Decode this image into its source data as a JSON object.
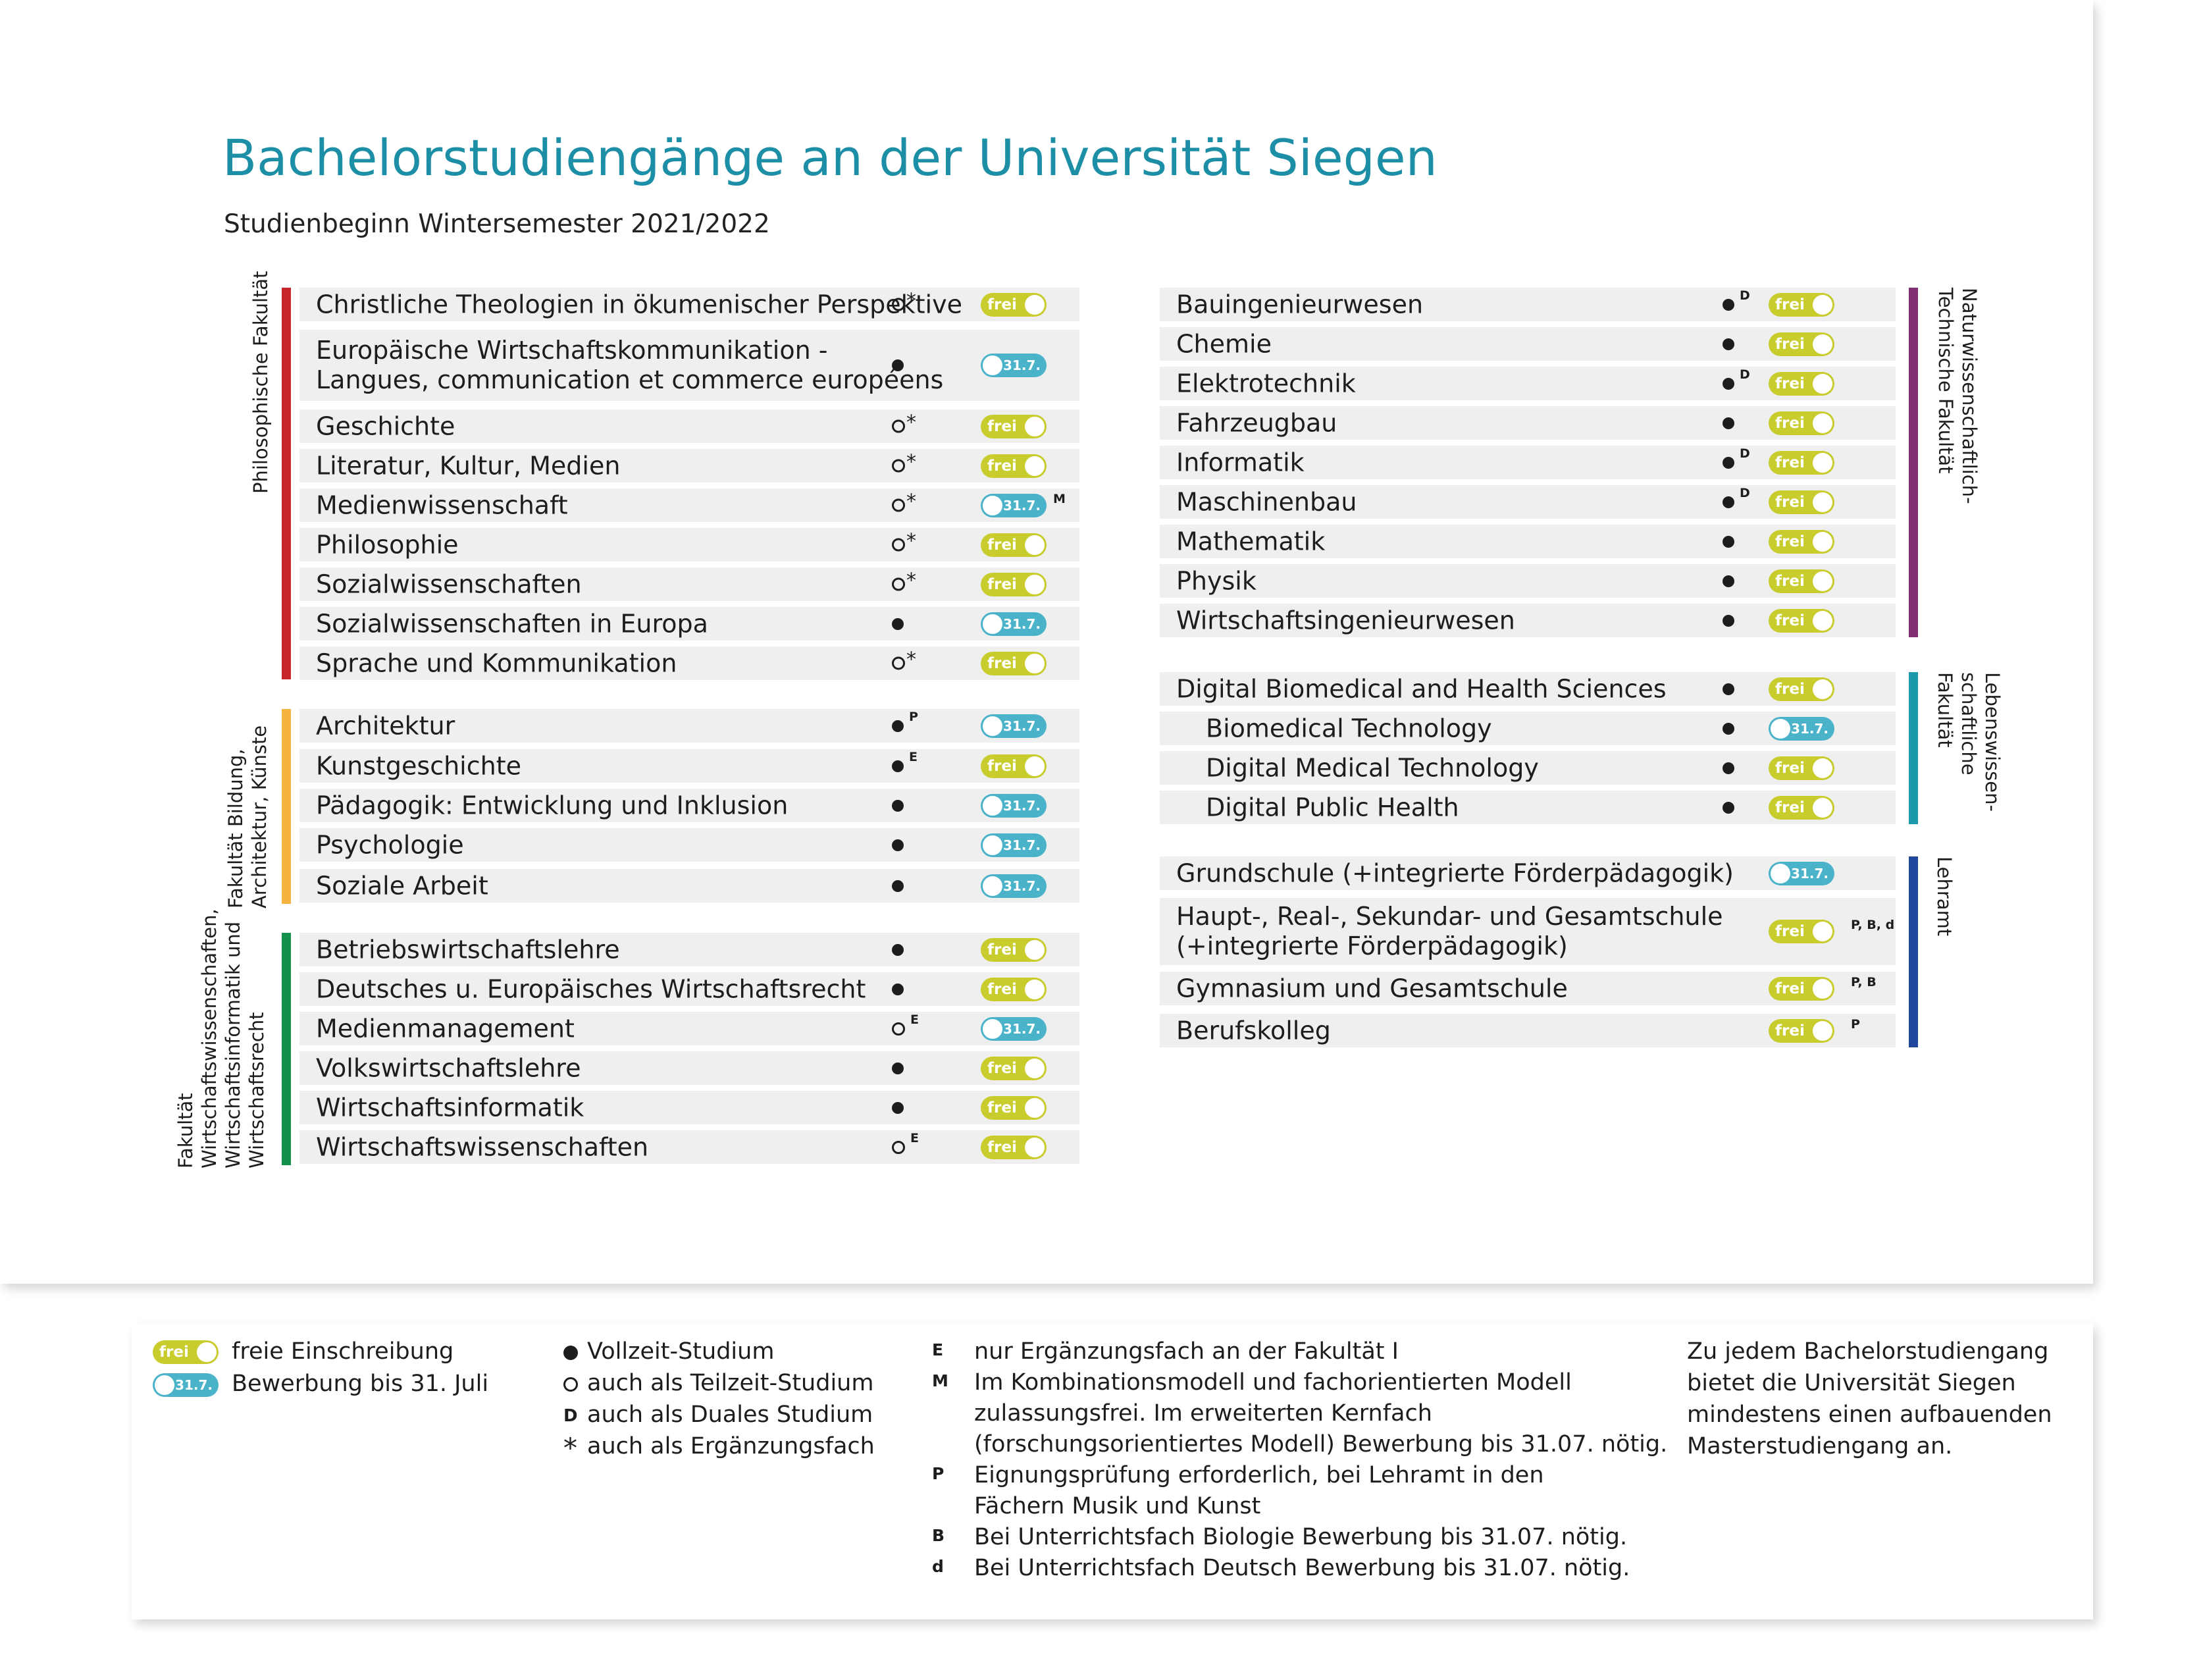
{
  "title_prefix": "Bachelorstudiengänge an der ",
  "title_uni": "Universität Siegen",
  "subtitle": "Studienbeginn Wintersemester 2021/2022",
  "colors": {
    "title": "#1c8fa6",
    "frei": "#c8cc2d",
    "date": "#4ab2c9",
    "phil": "#c6252b",
    "bild": "#f4b43f",
    "wiwi": "#13914a",
    "nat": "#7f2f72",
    "leb": "#1a9aaa",
    "lehr": "#20479b"
  },
  "faculties": [
    {
      "id": "phil",
      "label": "Philosophische Fakultät",
      "lines": [
        "Philosophische Fakultät"
      ]
    },
    {
      "id": "bild",
      "label": "Fakultät Bildung, Architektur, Künste",
      "lines": [
        "Fakultät Bildung,",
        "Architektur, Künste"
      ]
    },
    {
      "id": "wiwi",
      "label": "Fakultät Wirtschaftswissenschaften, Wirtschaftsinformatik und Wirtschaftsrecht",
      "lines": [
        "Fakultät",
        "Wirtschaftswissenschaften,",
        "Wirtschaftsinformatik und",
        "Wirtschaftsrecht"
      ]
    },
    {
      "id": "nat",
      "label": "Naturwissenschaftlich-Technische Fakultät",
      "lines": [
        "Naturwissenschaftlich-",
        "Technische Fakultät"
      ]
    },
    {
      "id": "leb",
      "label": "Lebenswissenschaftliche Fakultät",
      "lines": [
        "Lebenswissen-",
        "schaftliche",
        "Fakultät"
      ]
    },
    {
      "id": "lehr",
      "label": "Lehramt",
      "lines": [
        "Lehramt"
      ]
    }
  ],
  "programs": [
    {
      "name": "Christliche Theologien in ökumenischer Perspektive",
      "faculty": "phil",
      "mode": "ring",
      "sup": "*",
      "status": "frei",
      "suffix": ""
    },
    {
      "name": "Europäische Wirtschaftskommunikation -",
      "name2": "Langues, communication et commerce européens",
      "faculty": "phil",
      "mode": "dot",
      "sup": "",
      "status": "31.7.",
      "suffix": ""
    },
    {
      "name": "Geschichte",
      "faculty": "phil",
      "mode": "ring",
      "sup": "*",
      "status": "frei",
      "suffix": ""
    },
    {
      "name": "Literatur, Kultur, Medien",
      "faculty": "phil",
      "mode": "ring",
      "sup": "*",
      "status": "frei",
      "suffix": ""
    },
    {
      "name": "Medienwissenschaft",
      "faculty": "phil",
      "mode": "ring",
      "sup": "*",
      "status": "31.7.",
      "suffix": "M"
    },
    {
      "name": "Philosophie",
      "faculty": "phil",
      "mode": "ring",
      "sup": "*",
      "status": "frei",
      "suffix": ""
    },
    {
      "name": "Sozialwissenschaften",
      "faculty": "phil",
      "mode": "ring",
      "sup": "*",
      "status": "frei",
      "suffix": ""
    },
    {
      "name": "Sozialwissenschaften in Europa",
      "faculty": "phil",
      "mode": "dot",
      "sup": "",
      "status": "31.7.",
      "suffix": ""
    },
    {
      "name": "Sprache und Kommunikation",
      "faculty": "phil",
      "mode": "ring",
      "sup": "*",
      "status": "frei",
      "suffix": ""
    },
    {
      "name": "Architektur",
      "faculty": "bild",
      "mode": "dot",
      "sup": "P",
      "status": "31.7.",
      "suffix": ""
    },
    {
      "name": "Kunstgeschichte",
      "faculty": "bild",
      "mode": "dot",
      "sup": "E",
      "status": "frei",
      "suffix": ""
    },
    {
      "name": "Pädagogik: Entwicklung und Inklusion",
      "faculty": "bild",
      "mode": "dot",
      "sup": "",
      "status": "31.7.",
      "suffix": ""
    },
    {
      "name": "Psychologie",
      "faculty": "bild",
      "mode": "dot",
      "sup": "",
      "status": "31.7.",
      "suffix": ""
    },
    {
      "name": "Soziale Arbeit",
      "faculty": "bild",
      "mode": "dot",
      "sup": "",
      "status": "31.7.",
      "suffix": ""
    },
    {
      "name": "Betriebswirtschaftslehre",
      "faculty": "wiwi",
      "mode": "dot",
      "sup": "",
      "status": "frei",
      "suffix": ""
    },
    {
      "name": "Deutsches u. Europäisches Wirtschaftsrecht",
      "faculty": "wiwi",
      "mode": "dot",
      "sup": "",
      "status": "frei",
      "suffix": ""
    },
    {
      "name": "Medienmanagement",
      "faculty": "wiwi",
      "mode": "ring",
      "sup": "E",
      "status": "31.7.",
      "suffix": ""
    },
    {
      "name": "Volkswirtschaftslehre",
      "faculty": "wiwi",
      "mode": "dot",
      "sup": "",
      "status": "frei",
      "suffix": ""
    },
    {
      "name": "Wirtschaftsinformatik",
      "faculty": "wiwi",
      "mode": "dot",
      "sup": "",
      "status": "frei",
      "suffix": ""
    },
    {
      "name": "Wirtschaftswissenschaften",
      "faculty": "wiwi",
      "mode": "ring",
      "sup": "E",
      "status": "frei",
      "suffix": ""
    },
    {
      "name": "Bauingenieurwesen",
      "faculty": "nat",
      "mode": "dot",
      "sup": "D",
      "status": "frei",
      "suffix": ""
    },
    {
      "name": "Chemie",
      "faculty": "nat",
      "mode": "dot",
      "sup": "",
      "status": "frei",
      "suffix": ""
    },
    {
      "name": "Elektrotechnik",
      "faculty": "nat",
      "mode": "dot",
      "sup": "D",
      "status": "frei",
      "suffix": ""
    },
    {
      "name": "Fahrzeugbau",
      "faculty": "nat",
      "mode": "dot",
      "sup": "",
      "status": "frei",
      "suffix": ""
    },
    {
      "name": "Informatik",
      "faculty": "nat",
      "mode": "dot",
      "sup": "D",
      "status": "frei",
      "suffix": ""
    },
    {
      "name": "Maschinenbau",
      "faculty": "nat",
      "mode": "dot",
      "sup": "D",
      "status": "frei",
      "suffix": ""
    },
    {
      "name": "Mathematik",
      "faculty": "nat",
      "mode": "dot",
      "sup": "",
      "status": "frei",
      "suffix": ""
    },
    {
      "name": "Physik",
      "faculty": "nat",
      "mode": "dot",
      "sup": "",
      "status": "frei",
      "suffix": ""
    },
    {
      "name": "Wirtschaftsingenieurwesen",
      "faculty": "nat",
      "mode": "dot",
      "sup": "",
      "status": "frei",
      "suffix": ""
    },
    {
      "name": "Digital Biomedical and Health Sciences",
      "faculty": "leb",
      "mode": "dot",
      "sup": "",
      "status": "frei",
      "suffix": ""
    },
    {
      "name": "Biomedical Technology",
      "faculty": "leb",
      "mode": "dot",
      "sup": "",
      "status": "31.7.",
      "suffix": "",
      "indent": true
    },
    {
      "name": "Digital Medical Technology",
      "faculty": "leb",
      "mode": "dot",
      "sup": "",
      "status": "frei",
      "suffix": "",
      "indent": true
    },
    {
      "name": "Digital Public Health",
      "faculty": "leb",
      "mode": "dot",
      "sup": "",
      "status": "frei",
      "suffix": "",
      "indent": true
    },
    {
      "name": "Grundschule (+integrierte Förderpädagogik)",
      "faculty": "lehr",
      "mode": "none",
      "sup": "",
      "status": "31.7.",
      "suffix": ""
    },
    {
      "name": "Haupt-, Real-, Sekundar- und Gesamtschule",
      "name2": "(+integrierte Förderpädagogik)",
      "faculty": "lehr",
      "mode": "none",
      "sup": "",
      "status": "frei",
      "suffix": "P, B, d"
    },
    {
      "name": "Gymnasium und Gesamtschule",
      "faculty": "lehr",
      "mode": "none",
      "sup": "",
      "status": "frei",
      "suffix": "P, B"
    },
    {
      "name": "Berufskolleg",
      "faculty": "lehr",
      "mode": "none",
      "sup": "",
      "status": "frei",
      "suffix": "P"
    }
  ],
  "legend": {
    "frei_label": "freie Einschreibung",
    "date_label": "Bewerbung bis 31. Juli",
    "toggle_frei": "frei",
    "toggle_date": "31.7.",
    "modes": [
      {
        "symbol": "dot",
        "text": "Vollzeit-Studium"
      },
      {
        "symbol": "ring",
        "text": "auch als Teilzeit-Studium"
      },
      {
        "symbol": "D",
        "text": "auch als Duales Studium"
      },
      {
        "symbol": "*",
        "text": "auch als Ergänzungsfach"
      }
    ],
    "footnotes": [
      {
        "key": "E",
        "lines": [
          "nur Ergänzungsfach an der Fakultät I"
        ]
      },
      {
        "key": "M",
        "lines": [
          "Im Kombinationsmodell und fachorientierten Modell",
          "zulassungsfrei. Im erweiterten Kernfach",
          "(forschungsorientiertes Modell) Bewerbung bis 31.07. nötig."
        ]
      },
      {
        "key": "P",
        "lines": [
          "Eignungsprüfung erforderlich, bei Lehramt in den",
          "Fächern Musik und Kunst"
        ]
      },
      {
        "key": "B",
        "lines": [
          "Bei Unterrichtsfach Biologie Bewerbung bis 31.07. nötig."
        ]
      },
      {
        "key": "d",
        "lines": [
          "Bei Unterrichtsfach Deutsch Bewerbung bis 31.07. nötig."
        ]
      }
    ],
    "note_lines": [
      "Zu jedem Bachelorstudiengang",
      "bietet die Universität Siegen",
      "mindestens einen aufbauenden",
      "Masterstudiengang an."
    ]
  }
}
